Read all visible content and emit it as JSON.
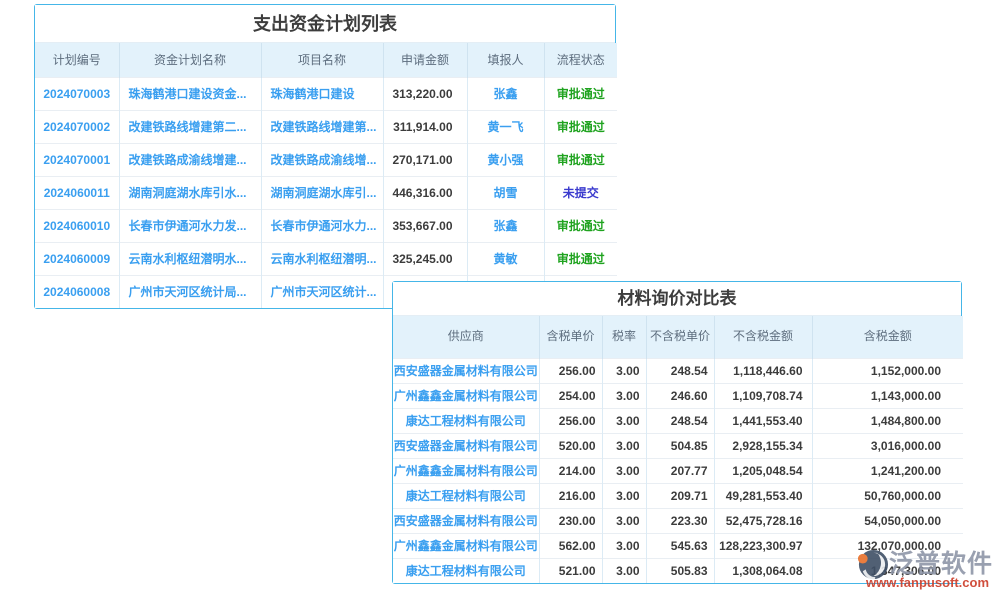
{
  "plan_table": {
    "title": "支出资金计划列表",
    "headers": [
      "计划编号",
      "资金计划名称",
      "项目名称",
      "申请金额",
      "填报人",
      "流程状态"
    ],
    "rows": [
      [
        "2024070003",
        "珠海鹤港口建设资金...",
        "珠海鹤港口建设",
        "313,220.00",
        "张鑫",
        "审批通过"
      ],
      [
        "2024070002",
        "改建铁路线增建第二...",
        "改建铁路线增建第...",
        "311,914.00",
        "黄一飞",
        "审批通过"
      ],
      [
        "2024070001",
        "改建铁路成渝线增建...",
        "改建铁路成渝线增...",
        "270,171.00",
        "黄小强",
        "审批通过"
      ],
      [
        "2024060011",
        "湖南洞庭湖水库引水...",
        "湖南洞庭湖水库引...",
        "446,316.00",
        "胡雪",
        "未提交"
      ],
      [
        "2024060010",
        "长春市伊通河水力发...",
        "长春市伊通河水力...",
        "353,667.00",
        "张鑫",
        "审批通过"
      ],
      [
        "2024060009",
        "云南水利枢纽潜明水...",
        "云南水利枢纽潜明...",
        "325,245.00",
        "黄敏",
        "审批通过"
      ],
      [
        "2024060008",
        "广州市天河区统计局...",
        "广州市天河区统计...",
        "",
        "",
        ""
      ]
    ]
  },
  "material_table": {
    "title": "材料询价对比表",
    "headers": [
      "供应商",
      "含税单价",
      "税率",
      "不含税单价",
      "不含税金额",
      "含税金额"
    ],
    "rows": [
      [
        "西安盛器金属材料有限公司",
        "256.00",
        "3.00",
        "248.54",
        "1,118,446.60",
        "1,152,000.00"
      ],
      [
        "广州鑫鑫金属材料有限公司",
        "254.00",
        "3.00",
        "246.60",
        "1,109,708.74",
        "1,143,000.00"
      ],
      [
        "康达工程材料有限公司",
        "256.00",
        "3.00",
        "248.54",
        "1,441,553.40",
        "1,484,800.00"
      ],
      [
        "西安盛器金属材料有限公司",
        "520.00",
        "3.00",
        "504.85",
        "2,928,155.34",
        "3,016,000.00"
      ],
      [
        "广州鑫鑫金属材料有限公司",
        "214.00",
        "3.00",
        "207.77",
        "1,205,048.54",
        "1,241,200.00"
      ],
      [
        "康达工程材料有限公司",
        "216.00",
        "3.00",
        "209.71",
        "49,281,553.40",
        "50,760,000.00"
      ],
      [
        "西安盛器金属材料有限公司",
        "230.00",
        "3.00",
        "223.30",
        "52,475,728.16",
        "54,050,000.00"
      ],
      [
        "广州鑫鑫金属材料有限公司",
        "562.00",
        "3.00",
        "545.63",
        "128,223,300.97",
        "132,070,000.00"
      ],
      [
        "康达工程材料有限公司",
        "521.00",
        "3.00",
        "505.83",
        "1,308,064.08",
        "1,347,306.00"
      ]
    ]
  },
  "status_colors": {
    "审批通过": "#1fa31f",
    "未提交": "#3a3ace"
  },
  "colors": {
    "frame_border": "#45b6e8",
    "header_bg": "#e3f2fb",
    "header_text": "#5d6d7e",
    "link_text": "#3a9ff0",
    "body_text": "#3c3c3c",
    "status_approved": "#1fa31f",
    "status_not_submitted": "#3a3ace"
  },
  "watermark": {
    "brand": "泛普软件",
    "url": "www.fanpusoft.com"
  }
}
